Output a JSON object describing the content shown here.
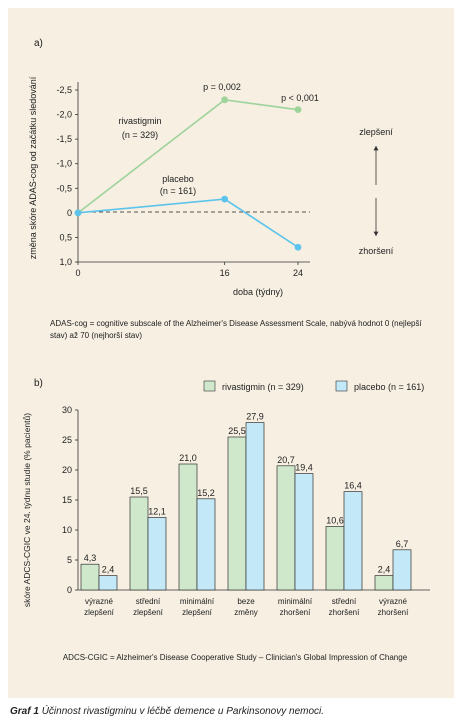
{
  "caption": {
    "label": "Graf 1",
    "text": "Účinnost rivastigminu v léčbě demence u Parkinsonovy nemoci."
  },
  "colors": {
    "panel_bg": "#f6efe2",
    "rivastigmin": "#9ed39a",
    "placebo": "#5bc3ec",
    "rivastigmin_bar": "#cfe8cb",
    "placebo_bar": "#c3e8f7"
  },
  "chart_data": [
    {
      "panel_label": "a)",
      "type": "line",
      "ylabel": "změna skóre ADAS-cog od začátku sledování",
      "xlabel": "doba (týdny)",
      "x": [
        0,
        16,
        24
      ],
      "x_ticks": [
        "0",
        "16",
        "24"
      ],
      "y_ticks": [
        "-2,5",
        "-2,0",
        "-1,5",
        "-1,0",
        "-0,5",
        "0",
        "0,5",
        "1,0"
      ],
      "ylim": [
        -2.5,
        1.0
      ],
      "y_inverted": true,
      "series": [
        {
          "name": "rivastigmin",
          "n_label": "(n = 329)",
          "values": [
            0,
            -2.3,
            -2.1
          ],
          "color": "#9ed39a"
        },
        {
          "name": "placebo",
          "n_label": "(n = 161)",
          "values": [
            0,
            -0.28,
            0.7
          ],
          "color": "#5bc3ec"
        }
      ],
      "annotations": [
        "p = 0,002",
        "p < 0,001"
      ],
      "direction_labels": {
        "top": "zlepšení",
        "bottom": "zhoršení"
      },
      "note": "ADAS-cog = cognitive subscale of the Alzheimer's Disease Assessment Scale, nabývá hodnot 0 (nejlepší stav) až 70 (nejhorší stav)"
    },
    {
      "panel_label": "b)",
      "type": "bar",
      "ylabel": "skóre ADCS-CGIC ve 24. týdnu studie (% pacientů)",
      "categories": [
        [
          "výrazné",
          "zlepšení"
        ],
        [
          "střední",
          "zlepšení"
        ],
        [
          "minimální",
          "zlepšení"
        ],
        [
          "beze",
          "změny"
        ],
        [
          "minimální",
          "zhoršení"
        ],
        [
          "střední",
          "zhoršení"
        ],
        [
          "výrazné",
          "zhoršení"
        ]
      ],
      "ylim": [
        0,
        30
      ],
      "y_ticks": [
        "0",
        "5",
        "10",
        "15",
        "20",
        "25",
        "30"
      ],
      "series": [
        {
          "name": "rivastigmin (n = 329)",
          "values": [
            4.3,
            15.5,
            21.0,
            25.5,
            20.7,
            10.6,
            2.4
          ],
          "labels": [
            "4,3",
            "15,5",
            "21,0",
            "25,5",
            "20,7",
            "10,6",
            "2,4"
          ],
          "color": "#cfe8cb"
        },
        {
          "name": "placebo (n = 161)",
          "values": [
            2.4,
            12.1,
            15.2,
            27.9,
            19.4,
            16.4,
            6.7
          ],
          "labels": [
            "2,4",
            "12,1",
            "15,2",
            "27,9",
            "19,4",
            "16,4",
            "6,7"
          ],
          "color": "#c3e8f7"
        }
      ],
      "note": "ADCS-CGIC = Alzheimer's Disease Cooperative Study – Clinician's Global Impression of Change"
    }
  ]
}
